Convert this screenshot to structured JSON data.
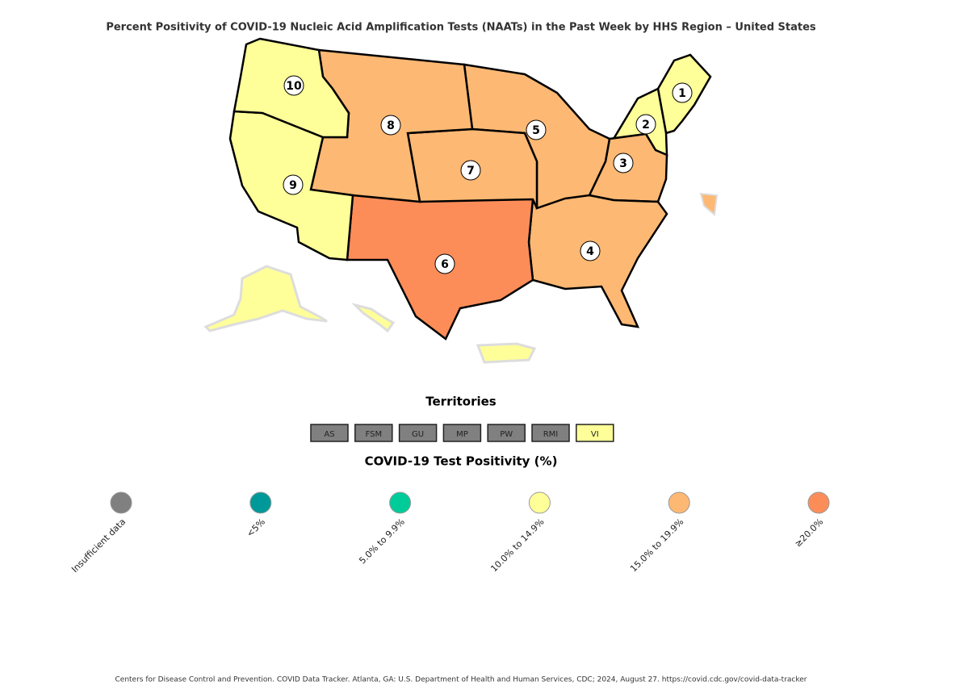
{
  "title": "Percent Positivity of COVID-19 Nucleic Acid Amplification Tests (NAATs) in the Past Week by HHS Region – United States",
  "regions": [
    {
      "label": "1",
      "color": "#ffff99"
    },
    {
      "label": "2",
      "color": "#ffff99"
    },
    {
      "label": "3",
      "color": "#fdb873"
    },
    {
      "label": "4",
      "color": "#fdb873"
    },
    {
      "label": "5",
      "color": "#fdb873"
    },
    {
      "label": "6",
      "color": "#fc8d59"
    },
    {
      "label": "7",
      "color": "#fdb873"
    },
    {
      "label": "8",
      "color": "#fdb873"
    },
    {
      "label": "9",
      "color": "#ffff99"
    },
    {
      "label": "10",
      "color": "#ffff99"
    }
  ],
  "territories": {
    "title": "Territories",
    "items": [
      {
        "label": "AS",
        "color": "#808080"
      },
      {
        "label": "FSM",
        "color": "#808080"
      },
      {
        "label": "GU",
        "color": "#808080"
      },
      {
        "label": "MP",
        "color": "#808080"
      },
      {
        "label": "PW",
        "color": "#808080"
      },
      {
        "label": "RMI",
        "color": "#808080"
      },
      {
        "label": "VI",
        "color": "#ffff99"
      }
    ]
  },
  "legend": {
    "title": "COVID-19 Test Positivity (%)",
    "items": [
      {
        "label": "Insufficient data",
        "color": "#808080"
      },
      {
        "label": "<5%",
        "color": "#009999"
      },
      {
        "label": "5.0% to 9.9%",
        "color": "#00cc99"
      },
      {
        "label": "10.0% to 14.9%",
        "color": "#ffff99"
      },
      {
        "label": "15.0% to 19.9%",
        "color": "#fdb873"
      },
      {
        "label": "≥20.0%",
        "color": "#fc8d59"
      }
    ]
  },
  "footer": "Centers for Disease Control and Prevention. COVID Data Tracker. Atlanta, GA: U.S. Department of Health and Human Services, CDC; 2024, August 27. https://covid.cdc.gov/covid-data-tracker"
}
